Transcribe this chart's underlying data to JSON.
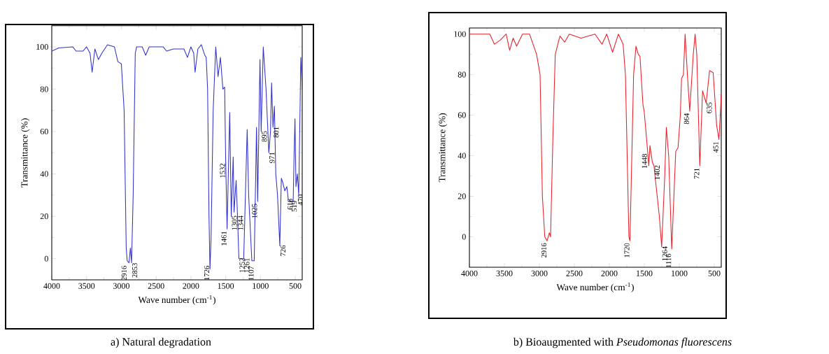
{
  "chart_data": [
    {
      "type": "line",
      "xlabel": "Wave number (cm$^{-1}$)",
      "ylabel": "Transmittance (%)",
      "xlim": [
        4000,
        400
      ],
      "ylim": [
        -10,
        110
      ],
      "xticks": [
        4000,
        3500,
        3000,
        2500,
        2000,
        1500,
        1000,
        500
      ],
      "yticks": [
        0,
        20,
        40,
        60,
        80,
        100
      ],
      "x": [
        4000,
        3900,
        3700,
        3650,
        3550,
        3500,
        3450,
        3420,
        3380,
        3330,
        3280,
        3200,
        3100,
        3050,
        3000,
        2960,
        2930,
        2916,
        2890,
        2870,
        2853,
        2830,
        2800,
        2780,
        2700,
        2650,
        2600,
        2400,
        2350,
        2250,
        2100,
        2050,
        2000,
        1960,
        1940,
        1900,
        1850,
        1800,
        1780,
        1760,
        1740,
        1726,
        1710,
        1680,
        1643,
        1610,
        1576,
        1540,
        1515,
        1500,
        1480,
        1442,
        1420,
        1392,
        1380,
        1350,
        1330,
        1310,
        1260,
        1241,
        1191,
        1170,
        1124,
        1090,
        1057,
        1040,
        1007,
        990,
        960,
        920,
        880,
        856,
        840,
        820,
        800,
        780,
        755,
        722,
        700,
        680,
        650,
        621,
        600,
        560,
        530,
        516,
        504,
        490,
        470,
        450,
        420,
        400
      ],
      "series": [
        {
          "color": "#3333cc",
          "values": [
            98,
            99.5,
            100,
            98,
            98,
            100,
            97,
            88,
            99,
            94,
            97,
            101,
            100,
            93,
            92,
            70,
            5,
            -1,
            -2,
            5,
            -2,
            30,
            97,
            100,
            100,
            96,
            100,
            100,
            98,
            99,
            99,
            95,
            100,
            97,
            88,
            99,
            101,
            96,
            95,
            80,
            20,
            -5,
            10,
            70,
            100,
            86,
            95,
            80,
            81,
            46,
            14,
            69,
            20,
            48,
            22,
            37,
            20,
            0,
            0,
            0,
            61,
            30,
            -1,
            -1,
            62,
            27,
            94,
            60,
            100,
            80,
            50,
            60,
            83,
            62,
            72,
            40,
            30,
            6,
            38,
            36,
            32,
            34,
            28,
            27,
            27,
            50,
            66,
            34,
            40,
            30,
            95,
            80
          ]
        }
      ],
      "annotations": [
        {
          "text": "2916",
          "x": 2916,
          "y": -1
        },
        {
          "text": "2853",
          "x": 2853,
          "y": -2
        },
        {
          "text": "1726",
          "x": 1726,
          "y": -5
        },
        {
          "text": "1461",
          "x": 1480,
          "y": 14
        },
        {
          "text": "1532",
          "x": 1500,
          "y": 46
        },
        {
          "text": "1305",
          "x": 1420,
          "y": 20
        },
        {
          "text": "1344",
          "x": 1330,
          "y": 20
        },
        {
          "text": "1252",
          "x": 1310,
          "y": 0
        },
        {
          "text": "1261",
          "x": 1241,
          "y": 0
        },
        {
          "text": "1025",
          "x": 1040,
          "y": 27
        },
        {
          "text": "1107",
          "x": 1090,
          "y": -1
        },
        {
          "text": "895",
          "x": 990,
          "y": 60
        },
        {
          "text": "971",
          "x": 880,
          "y": 50
        },
        {
          "text": "801",
          "x": 820,
          "y": 62
        },
        {
          "text": "726",
          "x": 722,
          "y": 6
        },
        {
          "text": "616",
          "x": 621,
          "y": 28
        },
        {
          "text": "519",
          "x": 560,
          "y": 27
        },
        {
          "text": "470",
          "x": 470,
          "y": 30
        },
        "a)    Natural degradation"
      ]
    },
    {
      "type": "line",
      "xlabel": "Wave number (cm$^{-1}$)",
      "ylabel": "Transmittance (%)",
      "xlim": [
        4000,
        400
      ],
      "ylim": [
        -15,
        103
      ],
      "xticks": [
        4000,
        3500,
        3000,
        2500,
        2000,
        1500,
        1000,
        500
      ],
      "yticks": [
        0,
        20,
        40,
        60,
        80,
        100
      ],
      "x": [
        4000,
        3709,
        3642,
        3560,
        3475,
        3425,
        3375,
        3325,
        3241,
        3141,
        3040,
        2990,
        2957,
        2923,
        2890,
        2857,
        2840,
        2806,
        2773,
        2706,
        2639,
        2572,
        2405,
        2205,
        2104,
        2037,
        1954,
        1870,
        1803,
        1770,
        1720,
        1705,
        1653,
        1619,
        1586,
        1562,
        1519,
        1502,
        1452,
        1436,
        1419,
        1386,
        1362,
        1285,
        1252,
        1208,
        1185,
        1152,
        1108,
        1051,
        1018,
        985,
        968,
        941,
        917,
        884,
        851,
        800,
        774,
        750,
        707,
        667,
        616,
        567,
        516,
        466,
        433,
        400
      ],
      "series": [
        {
          "color": "#e8202a",
          "values": [
            100,
            100,
            95,
            97,
            100,
            92,
            98,
            94,
            100,
            100,
            90,
            80,
            20,
            0,
            -2,
            2,
            0,
            50,
            90,
            99,
            96,
            100,
            98,
            100,
            95,
            100,
            91,
            100,
            95,
            80,
            0,
            -2,
            80,
            94,
            90,
            89,
            65,
            62,
            42,
            35,
            45,
            37,
            35,
            10,
            -5,
            30,
            54,
            40,
            -6,
            42,
            44,
            60,
            78,
            80,
            100,
            80,
            62,
            90,
            100,
            90,
            35,
            72,
            66,
            82,
            81,
            55,
            48,
            70
          ]
        }
      ],
      "annotations": [
        {
          "text": "2916",
          "x": 2890,
          "y": -2
        },
        {
          "text": "1720",
          "x": 1705,
          "y": -2
        },
        {
          "text": "1448",
          "x": 1452,
          "y": 42
        },
        {
          "text": "1402",
          "x": 1362,
          "y": 35
        },
        {
          "text": "1264",
          "x": 1252,
          "y": -5
        },
        {
          "text": "1116",
          "x": 1108,
          "y": -6
        },
        {
          "text": "864",
          "x": 851,
          "y": 62
        },
        {
          "text": "721",
          "x": 707,
          "y": 35
        },
        {
          "text": "635",
          "x": 616,
          "y": 66
        },
        {
          "text": "451",
          "x": 433,
          "y": 48
        },
        "b)    Bioaugmented with *Pseudomonas fluorescens*"
      ]
    }
  ]
}
